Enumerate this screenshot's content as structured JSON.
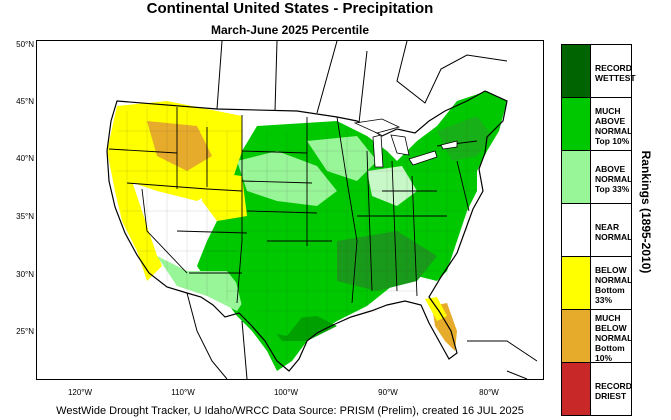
{
  "title": "Continental United States - Precipitation",
  "subtitle": "March-June 2025 Percentile",
  "footer": "WestWide Drought Tracker, U Idaho/WRCC Data Source: PRISM (Prelim), created 16 JUL 2025",
  "lat_ticks": [
    "50°N",
    "45°N",
    "40°N",
    "35°N",
    "30°N",
    "25°N"
  ],
  "lon_ticks": [
    "120°W",
    "110°W",
    "100°W",
    "90°W",
    "80°W"
  ],
  "legend": {
    "title": "Rankings (1895-2010)",
    "items": [
      {
        "label": "RECORD WETTEST",
        "color": "#006400"
      },
      {
        "label": "MUCH ABOVE NORMAL Top 10%",
        "color": "#00c800"
      },
      {
        "label": "ABOVE NORMAL Top 33%",
        "color": "#98f598"
      },
      {
        "label": "NEAR NORMAL",
        "color": "#ffffff"
      },
      {
        "label": "BELOW NORMAL Bottom 33%",
        "color": "#ffff00"
      },
      {
        "label": "MUCH BELOW NORMAL Bottom 10%",
        "color": "#e6ab2a"
      },
      {
        "label": "RECORD DRIEST",
        "color": "#c82828"
      }
    ]
  }
}
